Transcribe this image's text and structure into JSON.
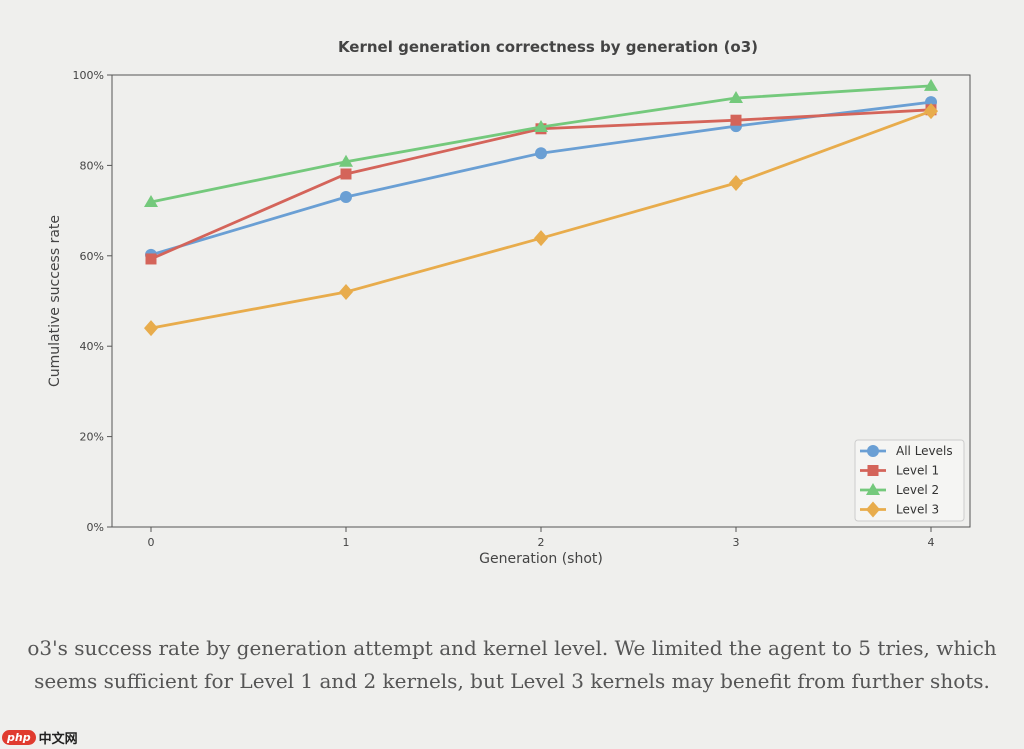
{
  "chart_data": {
    "type": "line",
    "title": "Kernel generation correctness by generation (o3)",
    "xlabel": "Generation (shot)",
    "ylabel": "Cumulative success rate",
    "x": [
      0,
      1,
      2,
      3,
      4
    ],
    "xticks": [
      "0",
      "1",
      "2",
      "3",
      "4"
    ],
    "yticks": [
      "0%",
      "20%",
      "40%",
      "60%",
      "80%",
      "100%"
    ],
    "ytick_values": [
      0,
      20,
      40,
      60,
      80,
      100
    ],
    "xlim": [
      -0.2,
      4.2
    ],
    "ylim": [
      0,
      100
    ],
    "grid": false,
    "legend_position": "bottom-right",
    "series": [
      {
        "name": "All Levels",
        "values": [
          60.2,
          73.0,
          82.7,
          88.7,
          94.0
        ],
        "color": "#6a9fd4",
        "marker": "circle"
      },
      {
        "name": "Level 1",
        "values": [
          59.3,
          78.1,
          88.1,
          90.0,
          92.3
        ],
        "color": "#d4645a",
        "marker": "square"
      },
      {
        "name": "Level 2",
        "values": [
          71.9,
          80.8,
          88.5,
          94.9,
          97.6
        ],
        "color": "#74c97c",
        "marker": "triangle"
      },
      {
        "name": "Level 3",
        "values": [
          44.0,
          52.0,
          63.9,
          76.1,
          92.0
        ],
        "color": "#e8ac4c",
        "marker": "diamond"
      }
    ]
  },
  "caption": "o3's success rate by generation attempt and kernel level. We limited the agent to 5 tries, which seems sufficient for Level 1 and 2 kernels, but Level 3 kernels may benefit from further shots.",
  "watermark": {
    "logo": "php",
    "text": "中文网"
  }
}
